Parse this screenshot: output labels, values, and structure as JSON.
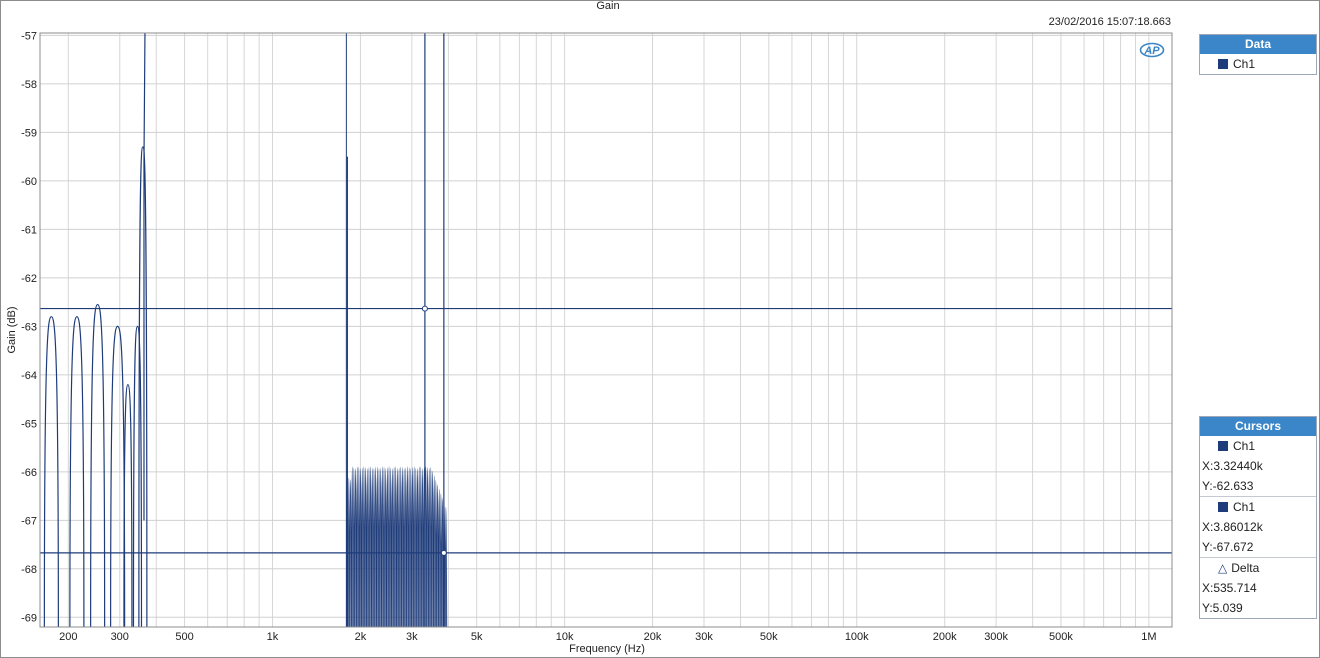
{
  "title": "Gain",
  "timestamp": "23/02/2016 15:07:18.663",
  "logo_text": "AP",
  "chart_data": {
    "type": "line",
    "xscale": "log",
    "xlim": [
      160,
      1200000
    ],
    "ylim": [
      -69.2,
      -56.95
    ],
    "xlabel": "Frequency (Hz)",
    "ylabel": "Gain (dB)",
    "x_ticks": [
      {
        "v": 200,
        "label": "200"
      },
      {
        "v": 300,
        "label": "300"
      },
      {
        "v": 500,
        "label": "500"
      },
      {
        "v": 1000,
        "label": "1k"
      },
      {
        "v": 2000,
        "label": "2k"
      },
      {
        "v": 3000,
        "label": "3k"
      },
      {
        "v": 5000,
        "label": "5k"
      },
      {
        "v": 10000,
        "label": "10k"
      },
      {
        "v": 20000,
        "label": "20k"
      },
      {
        "v": 30000,
        "label": "30k"
      },
      {
        "v": 50000,
        "label": "50k"
      },
      {
        "v": 100000,
        "label": "100k"
      },
      {
        "v": 200000,
        "label": "200k"
      },
      {
        "v": 300000,
        "label": "300k"
      },
      {
        "v": 500000,
        "label": "500k"
      },
      {
        "v": 1000000,
        "label": "1M"
      }
    ],
    "y_ticks": [
      -57,
      -58,
      -59,
      -60,
      -61,
      -62,
      -63,
      -64,
      -65,
      -66,
      -67,
      -68,
      -69
    ],
    "grid": true,
    "series": [
      {
        "name": "Ch1",
        "color": "#1f3c7a",
        "lobes_low": [
          {
            "f": 175,
            "peak": -62.8
          },
          {
            "f": 214,
            "peak": -62.8
          },
          {
            "f": 252,
            "peak": -62.55
          },
          {
            "f": 295,
            "peak": -63.0
          },
          {
            "f": 320,
            "peak": -64.2
          },
          {
            "f": 345,
            "peak": -63.0
          },
          {
            "f": 360,
            "peak": -59.3
          }
        ],
        "band": {
          "f_start": 1790,
          "f_end": 3950,
          "level": -62.63,
          "spike": -59.5
        }
      }
    ],
    "cursors": [
      {
        "x": 3324.4,
        "y": -62.633
      },
      {
        "x": 3860.12,
        "y": -67.672
      }
    ]
  },
  "data_panel": {
    "title": "Data",
    "channel": "Ch1"
  },
  "cursors_panel": {
    "title": "Cursors",
    "c1": {
      "channel": "Ch1",
      "x": "X:3.32440k",
      "y": "Y:-62.633"
    },
    "c2": {
      "channel": "Ch1",
      "x": "X:3.86012k",
      "y": "Y:-67.672"
    },
    "delta": {
      "label": "Delta",
      "x": "X:535.714",
      "y": "Y:5.039"
    }
  }
}
